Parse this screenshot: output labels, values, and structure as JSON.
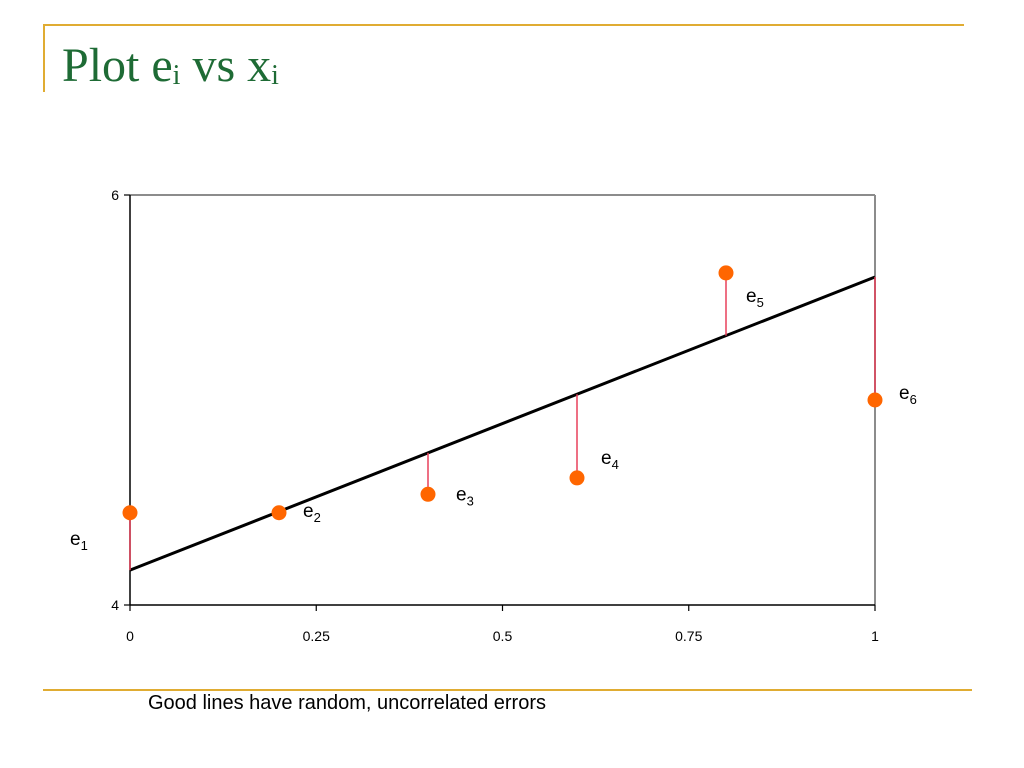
{
  "slide": {
    "title": {
      "plot_word": "Plot e",
      "sub_1": "i",
      "vs_word": " vs x",
      "sub_2": "i"
    },
    "caption": "Good lines have random, uncorrelated errors",
    "colors": {
      "title": "#1e6b35",
      "accent_rule": "#e0ac32",
      "points": "#ff6600",
      "residuals": "#e8405a",
      "fit_line": "#000000"
    }
  },
  "chart_data": {
    "type": "scatter",
    "x": [
      0,
      0.2,
      0.4,
      0.6,
      0.8,
      1.0
    ],
    "y": [
      4.45,
      4.45,
      4.54,
      4.62,
      5.62,
      5.0
    ],
    "fit_line": {
      "x": [
        0,
        1
      ],
      "y": [
        4.17,
        5.6
      ]
    },
    "residual_labels": [
      {
        "base": "e",
        "sub": "1"
      },
      {
        "base": "e",
        "sub": "2"
      },
      {
        "base": "e",
        "sub": "3"
      },
      {
        "base": "e",
        "sub": "4"
      },
      {
        "base": "e",
        "sub": "5"
      },
      {
        "base": "e",
        "sub": "6"
      }
    ],
    "xticks": [
      0,
      0.25,
      0.5,
      0.75,
      1
    ],
    "xtick_labels": [
      "0",
      "0.25",
      "0.5",
      "0.75",
      "1"
    ],
    "yticks": [
      4,
      6
    ],
    "ytick_labels": [
      "4",
      "6"
    ],
    "xlim": [
      0,
      1
    ],
    "ylim": [
      4,
      6
    ],
    "xlabel": "",
    "ylabel": "",
    "grid": false,
    "legend": "none"
  }
}
